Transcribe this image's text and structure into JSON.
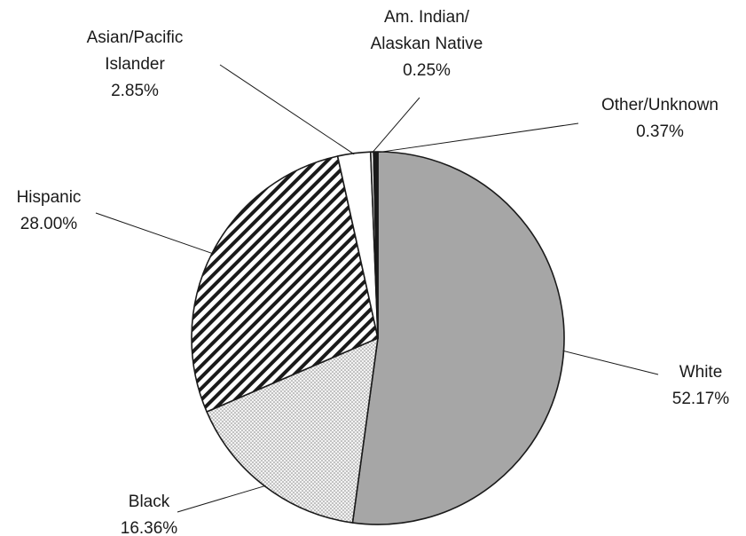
{
  "chart_data": {
    "type": "pie",
    "title": "",
    "slices": [
      {
        "name": "White",
        "value": 52.17,
        "label_lines": [
          "White",
          "52.17%"
        ],
        "color": "#a6a6a6",
        "pattern": "solid"
      },
      {
        "name": "Black",
        "value": 16.36,
        "label_lines": [
          "Black",
          "16.36%"
        ],
        "color": "#e8e8e8",
        "pattern": "dots"
      },
      {
        "name": "Hispanic",
        "value": 28.0,
        "label_lines": [
          "Hispanic",
          "28.00%"
        ],
        "color": "#ffffff",
        "pattern": "diagonal-stripes"
      },
      {
        "name": "Asian/Pacific Islander",
        "value": 2.85,
        "label_lines": [
          "Asian/Pacific",
          "Islander",
          "2.85%"
        ],
        "color": "#ffffff",
        "pattern": "solid"
      },
      {
        "name": "Am. Indian/Alaskan Native",
        "value": 0.25,
        "label_lines": [
          "Am. Indian/",
          "Alaskan Native",
          "0.25%"
        ],
        "color": "#ffffff",
        "pattern": "solid"
      },
      {
        "name": "Other/Unknown",
        "value": 0.37,
        "label_lines": [
          "Other/Unknown",
          "0.37%"
        ],
        "color": "#1a1a1a",
        "pattern": "solid"
      }
    ],
    "legend": "none",
    "start": "12 o'clock",
    "direction": "clockwise"
  }
}
